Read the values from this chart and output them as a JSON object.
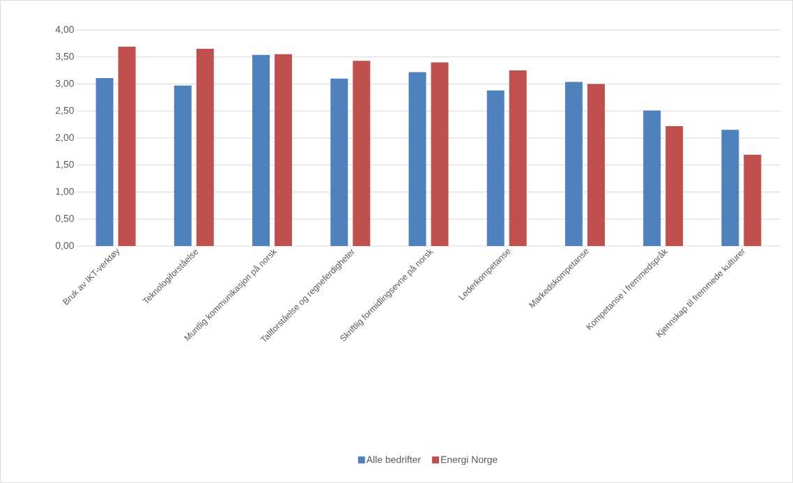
{
  "chart_data": {
    "type": "bar",
    "categories": [
      "Bruk av IKT-verktøy",
      "Teknologiforståelse",
      "Muntlig kommunikasjon på norsk",
      "Tallforståelse og regneferdigheter",
      "Skriftlig formidlingsevne på norsk",
      "Lederkompetanse",
      "Markedskompetanse",
      "Kompetanse i fremmedspråk",
      "Kjennskap til fremmede kulturer"
    ],
    "series": [
      {
        "name": "Alle bedrifter",
        "color": "#4f81bd",
        "values": [
          3.11,
          2.97,
          3.54,
          3.1,
          3.22,
          2.88,
          3.04,
          2.51,
          2.15
        ]
      },
      {
        "name": "Energi Norge",
        "color": "#c0504d",
        "values": [
          3.69,
          3.65,
          3.55,
          3.43,
          3.4,
          3.25,
          3.0,
          2.22,
          1.69
        ]
      }
    ],
    "ylim": [
      0,
      4
    ],
    "yticks": [
      {
        "value": 0,
        "label": "0,00"
      },
      {
        "value": 0.5,
        "label": "0,50"
      },
      {
        "value": 1,
        "label": "1,00"
      },
      {
        "value": 1.5,
        "label": "1,50"
      },
      {
        "value": 2,
        "label": "2,00"
      },
      {
        "value": 2.5,
        "label": "2,50"
      },
      {
        "value": 3,
        "label": "3,00"
      },
      {
        "value": 3.5,
        "label": "3,50"
      },
      {
        "value": 4,
        "label": "4,00"
      }
    ],
    "grid": "y",
    "legend": "bottom"
  }
}
